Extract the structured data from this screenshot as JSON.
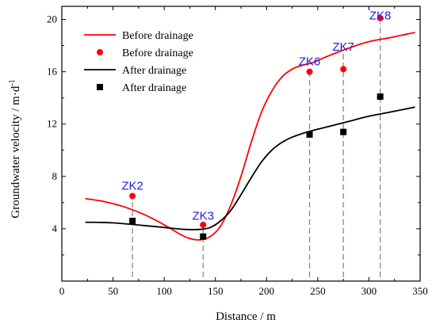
{
  "chart_data": {
    "type": "line",
    "xlabel": "Distance / m",
    "ylabel_main": "Groundwater velocity / m·d",
    "ylabel_sup": "-1",
    "xlim": [
      0,
      350
    ],
    "ylim": [
      0,
      21
    ],
    "xticks": [
      0,
      50,
      100,
      150,
      200,
      250,
      300,
      350
    ],
    "yticks": [
      4,
      8,
      12,
      16,
      20
    ],
    "grid": false,
    "legend_position": "top-left",
    "colors": {
      "before": "#ff0000",
      "after": "#000000",
      "annotation": "#1f1fe0",
      "guide": "#808080"
    },
    "series": [
      {
        "name": "Before drainage",
        "style": "line",
        "color": "#ff0000",
        "x": [
          23,
          40,
          60,
          80,
          100,
          115,
          125,
          135,
          145,
          155,
          165,
          175,
          185,
          195,
          205,
          215,
          225,
          235,
          245,
          260,
          280,
          300,
          320,
          345
        ],
        "y": [
          6.3,
          6.1,
          5.7,
          5.1,
          4.3,
          3.6,
          3.25,
          3.15,
          3.4,
          4.2,
          5.8,
          8.0,
          10.6,
          12.9,
          14.5,
          15.6,
          16.2,
          16.5,
          16.7,
          17.2,
          17.8,
          18.3,
          18.6,
          19.0
        ]
      },
      {
        "name": "Before drainage",
        "style": "scatter",
        "marker": "circle",
        "color": "#ff0000",
        "x": [
          69,
          138,
          242,
          275,
          311
        ],
        "y": [
          6.5,
          4.3,
          16.0,
          16.2,
          20.1
        ]
      },
      {
        "name": "After drainage",
        "style": "line",
        "color": "#000000",
        "x": [
          23,
          50,
          80,
          100,
          120,
          135,
          145,
          155,
          165,
          175,
          185,
          195,
          205,
          215,
          225,
          240,
          260,
          280,
          300,
          320,
          345
        ],
        "y": [
          4.5,
          4.45,
          4.25,
          4.1,
          3.95,
          3.95,
          4.1,
          4.6,
          5.4,
          6.6,
          7.9,
          9.1,
          10.0,
          10.6,
          11.0,
          11.4,
          11.8,
          12.2,
          12.6,
          12.9,
          13.3
        ]
      },
      {
        "name": "After drainage",
        "style": "scatter",
        "marker": "square",
        "color": "#000000",
        "x": [
          69,
          138,
          242,
          275,
          311
        ],
        "y": [
          4.6,
          3.4,
          11.2,
          11.4,
          14.1
        ]
      }
    ],
    "annotations": [
      {
        "text": "ZK2",
        "x": 69,
        "y": 7.0
      },
      {
        "text": "ZK3",
        "x": 138,
        "y": 4.7
      },
      {
        "text": "ZK6",
        "x": 242,
        "y": 16.5
      },
      {
        "text": "ZK7",
        "x": 275,
        "y": 17.6
      },
      {
        "text": "ZK8",
        "x": 311,
        "y": 20.0
      }
    ],
    "guide_lines_x": [
      69,
      138,
      242,
      275,
      311
    ]
  }
}
